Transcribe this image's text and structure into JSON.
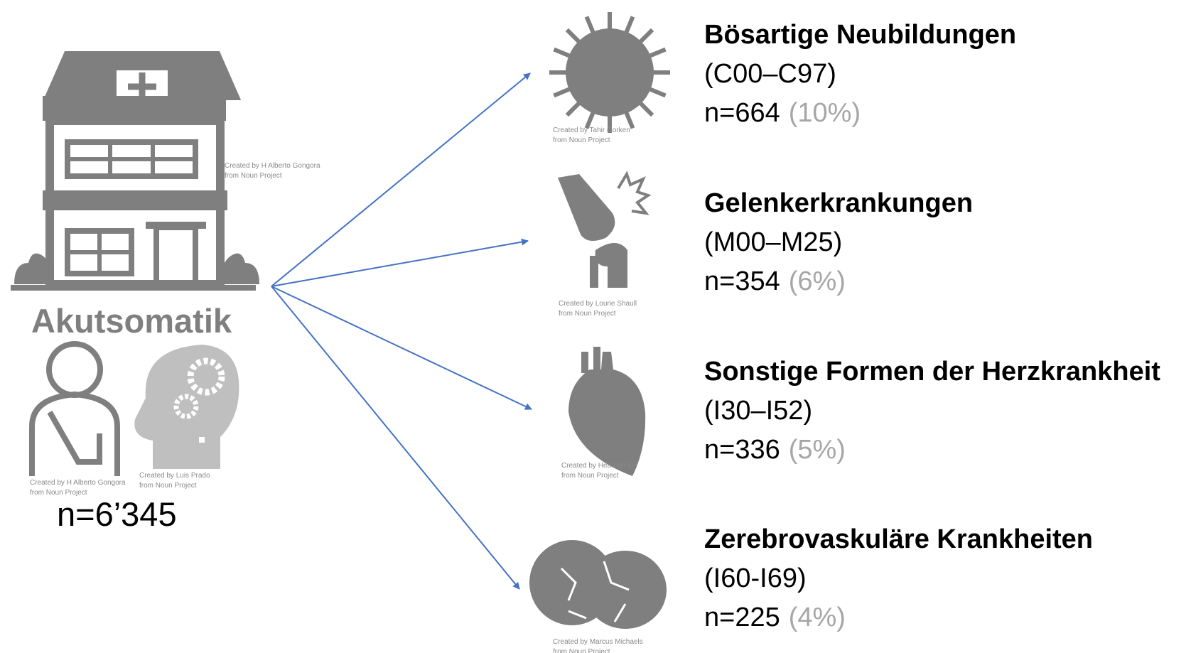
{
  "source": {
    "label": "Akutsomatik",
    "count": "n=6’345",
    "credits": [
      [
        "Created by H Alberto Gongora",
        "from Noun Project"
      ],
      [
        "Created by H Alberto Gongora",
        "from Noun Project"
      ],
      [
        "Created by Luis Prado",
        "from Noun Project"
      ]
    ]
  },
  "targets": [
    {
      "title": "Bösartige Neubildungen",
      "code": "(C00–C97)",
      "count": "n=664",
      "share": "(10%)",
      "credit": [
        "Created by Tahir Gorken",
        "from Noun Project"
      ]
    },
    {
      "title": "Gelenkerkrankungen",
      "code": "(M00–M25)",
      "count": "n=354",
      "share": "(6%)",
      "credit": [
        "Created by Lourie Shaull",
        "from Noun Project"
      ]
    },
    {
      "title": "Sonstige Formen der Herzkrankheit",
      "code": "(I30–I52)",
      "count": "n=336",
      "share": "(5%)",
      "credit": [
        "Created by Hea Poh Lin",
        "from Noun Project"
      ]
    },
    {
      "title": "Zerebrovaskuläre Krankheiten",
      "code": "(I60-I69)",
      "count": "n=225",
      "share": "(4%)",
      "credit": [
        "Created by Marcus Michaels",
        "from Noun Project"
      ]
    }
  ]
}
